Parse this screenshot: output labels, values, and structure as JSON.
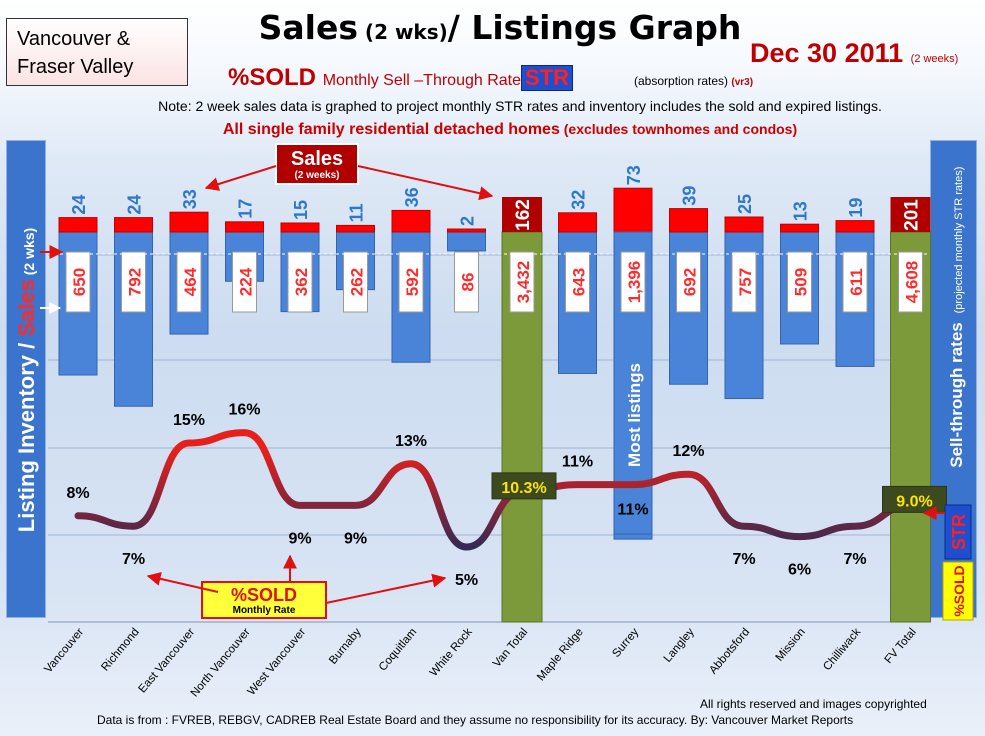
{
  "region": [
    "Vancouver &",
    "Fraser Valley"
  ],
  "header": {
    "title_main_a": "Sales",
    "title_small": " (2 wks)",
    "title_main_b": "/ Listings Graph",
    "date": "Dec 30 2011",
    "date_sub": "(2 weeks)",
    "sold_label": "%SOLD",
    "rate_label": "Monthly Sell –Through Rate",
    "str_label": "STR",
    "absorption_label": "(absorption rates)",
    "version": "(vr3)",
    "note": "Note: 2 week sales data is graphed to project monthly STR rates and inventory includes the sold and expired listings.",
    "subtitle_bold": "All single family residential detached homes",
    "subtitle_rest": " (excludes townhomes and condos)"
  },
  "left_axis_label_a": "Listing Inventory / ",
  "left_axis_label_b": "Sales",
  "left_axis_label_c": " (2 wks)",
  "right_axis_label": "Sell-through rates",
  "right_axis_sub": "(projected monthly STR rates)",
  "right_str": "STR",
  "right_sold": "%SOLD",
  "callouts": {
    "sales": "Sales",
    "sales_sub": "(2 weeks)",
    "sold": "%SOLD",
    "sold_sub": "Monthly Rate",
    "most_listings": "Most listings"
  },
  "colors": {
    "sales_bar": "#ff0000",
    "listing_bar": "#4a84d8",
    "total_bar": "#7d9a3a",
    "total_sales_bar": "#b00000",
    "sales_label": "#2f78c8",
    "line_low": "#1f2a5a",
    "line_high": "#e8201a"
  },
  "chart_data": {
    "type": "bar",
    "categories": [
      "Vancouver",
      "Richmond",
      "East Vancouver",
      "North Vancouver",
      "West Vancouver",
      "Burnaby",
      "Coquitlam",
      "White Rock",
      "Van Total",
      "Maple Ridge",
      "Surrey",
      "Langley",
      "Abbotsford",
      "Mission",
      "Chilliwack",
      "FV Total"
    ],
    "series": [
      {
        "name": "Sales",
        "values": [
          24,
          24,
          33,
          17,
          15,
          11,
          36,
          2,
          162,
          32,
          73,
          39,
          25,
          13,
          19,
          201
        ]
      },
      {
        "name": "Listing Inventory",
        "values": [
          650,
          792,
          464,
          224,
          362,
          262,
          592,
          86,
          3432,
          643,
          1396,
          692,
          757,
          509,
          611,
          4608
        ]
      },
      {
        "name": "%SOLD",
        "values": [
          8,
          7,
          15,
          16,
          9,
          9,
          13,
          5,
          10.3,
          11,
          11,
          12,
          7,
          6,
          7,
          9.0
        ]
      }
    ],
    "value_labels": {
      "sales": [
        "24",
        "24",
        "33",
        "17",
        "15",
        "11",
        "36",
        "2",
        "162",
        "32",
        "73",
        "39",
        "25",
        "13",
        "19",
        "201"
      ],
      "listings": [
        "650",
        "792",
        "464",
        "224",
        "362",
        "262",
        "592",
        "86",
        "3,432",
        "643",
        "1,396",
        "692",
        "757",
        "509",
        "611",
        "4,608"
      ],
      "sold": [
        "8%",
        "7%",
        "15%",
        "16%",
        "9%",
        "9%",
        "13%",
        "5%",
        "10.3%",
        "11%",
        "11%",
        "12%",
        "7%",
        "6%",
        "7%",
        "9.0%"
      ]
    },
    "totals": [
      "Van Total",
      "FV Total"
    ]
  },
  "footer": {
    "rights": "All rights reserved and  images copyrighted",
    "source": "Data is from : FVREB, REBGV, CADREB Real Estate Board and they assume no responsibility for its accuracy. By: Vancouver Market Reports"
  }
}
